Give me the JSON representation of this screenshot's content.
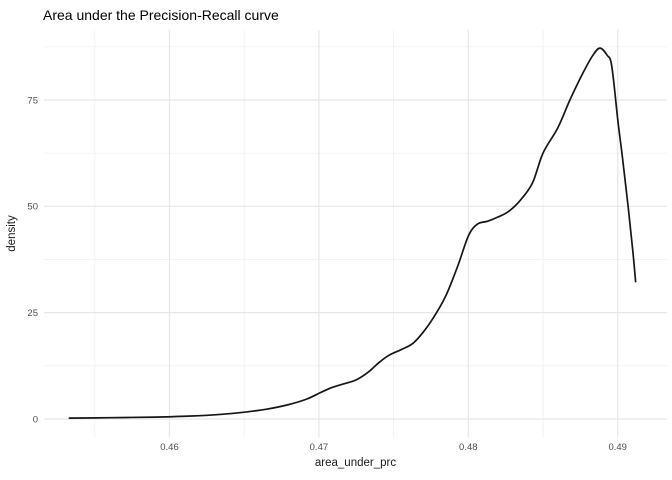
{
  "chart_data": {
    "type": "line",
    "subtype": "density",
    "title": "Area under the Precision-Recall curve",
    "xlabel": "area_under_prc",
    "ylabel": "density",
    "grid": true,
    "legend_position": "none",
    "background_color": "#ffffff",
    "line_color": "#161616",
    "grid_major_color": "#e7e7e7",
    "grid_minor_color": "#f1f1f1",
    "tick_label_color": "#4d4d4d",
    "xlim": [
      0.4516,
      0.4933
    ],
    "ylim": [
      -4.35,
      91.45
    ],
    "x_tick_values": [
      0.46,
      0.47,
      0.48,
      0.49
    ],
    "x_tick_labels": [
      "0.46",
      "0.47",
      "0.48",
      "0.49"
    ],
    "x_minor_ticks": [
      0.455,
      0.465,
      0.475,
      0.485
    ],
    "y_tick_values": [
      0,
      25,
      50,
      75
    ],
    "y_tick_labels": [
      "0",
      "25",
      "50",
      "75"
    ],
    "y_minor_ticks": [
      12.5,
      37.5,
      62.5,
      87.5
    ],
    "series": [
      {
        "name": "density",
        "points": [
          [
            0.4533,
            0.2
          ],
          [
            0.456,
            0.3
          ],
          [
            0.459,
            0.45
          ],
          [
            0.4615,
            0.7
          ],
          [
            0.4635,
            1.1
          ],
          [
            0.465,
            1.6
          ],
          [
            0.4665,
            2.3
          ],
          [
            0.468,
            3.4
          ],
          [
            0.4692,
            4.7
          ],
          [
            0.4701,
            6.2
          ],
          [
            0.4708,
            7.3
          ],
          [
            0.4717,
            8.3
          ],
          [
            0.4725,
            9.2
          ],
          [
            0.4733,
            11.0
          ],
          [
            0.474,
            13.2
          ],
          [
            0.4747,
            15.0
          ],
          [
            0.4755,
            16.3
          ],
          [
            0.4763,
            17.8
          ],
          [
            0.477,
            20.5
          ],
          [
            0.4777,
            24.0
          ],
          [
            0.4785,
            29.0
          ],
          [
            0.4793,
            36.0
          ],
          [
            0.48,
            43.0
          ],
          [
            0.4806,
            45.8
          ],
          [
            0.4813,
            46.5
          ],
          [
            0.482,
            47.5
          ],
          [
            0.4827,
            48.8
          ],
          [
            0.4835,
            51.5
          ],
          [
            0.4843,
            55.5
          ],
          [
            0.485,
            62.5
          ],
          [
            0.486,
            68.5
          ],
          [
            0.4868,
            75.0
          ],
          [
            0.4877,
            81.5
          ],
          [
            0.4883,
            85.3
          ],
          [
            0.4888,
            87.2
          ],
          [
            0.4893,
            85.5
          ],
          [
            0.4896,
            83.0
          ],
          [
            0.49,
            70.5
          ],
          [
            0.4903,
            62.0
          ],
          [
            0.4907,
            49.8
          ],
          [
            0.491,
            40.0
          ],
          [
            0.4912,
            32.3
          ]
        ]
      }
    ]
  }
}
